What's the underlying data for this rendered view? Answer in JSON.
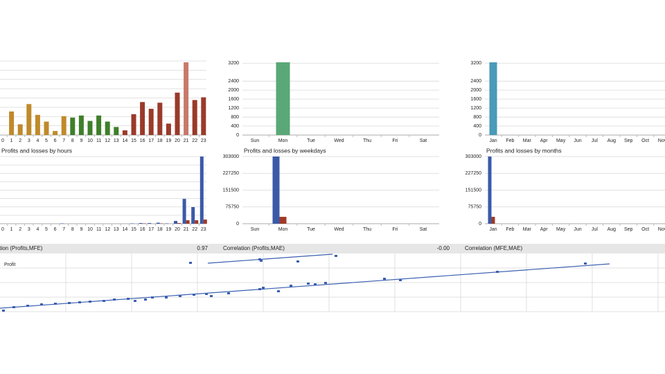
{
  "chart_data": [
    {
      "type": "bar",
      "categories": [
        "0",
        "1",
        "2",
        "3",
        "4",
        "5",
        "6",
        "7",
        "8",
        "9",
        "10",
        "11",
        "12",
        "13",
        "14",
        "15",
        "16",
        "17",
        "18",
        "19",
        "20",
        "21",
        "22",
        "23"
      ],
      "values": [
        0,
        1050,
        480,
        1380,
        900,
        600,
        180,
        840,
        780,
        870,
        630,
        870,
        600,
        360,
        210,
        930,
        1470,
        1170,
        1440,
        510,
        1890,
        3240,
        1560,
        1680
      ],
      "colors": [
        "#c08a2a",
        "#c08a2a",
        "#c08a2a",
        "#c08a2a",
        "#c08a2a",
        "#c08a2a",
        "#c08a2a",
        "#c08a2a",
        "#3f7f2a",
        "#3f7f2a",
        "#3f7f2a",
        "#3f7f2a",
        "#3f7f2a",
        "#3f7f2a",
        "#9a3a2a",
        "#9a3a2a",
        "#9a3a2a",
        "#9a3a2a",
        "#9a3a2a",
        "#9a3a2a",
        "#9a3a2a",
        "#c8786a",
        "#9a3a2a",
        "#9a3a2a"
      ],
      "ylim": [
        0,
        3300
      ],
      "grid": true
    },
    {
      "type": "bar",
      "categories": [
        "Sun",
        "Mon",
        "Tue",
        "Wed",
        "Thu",
        "Fri",
        "Sat"
      ],
      "values": [
        0,
        3240,
        0,
        0,
        0,
        0,
        0
      ],
      "color": "#5aa878",
      "ylim": [
        0,
        3300
      ],
      "yticks": [
        0,
        400,
        800,
        1200,
        1600,
        2000,
        2400,
        3200
      ],
      "grid": true
    },
    {
      "type": "bar",
      "categories": [
        "Jan",
        "Feb",
        "Mar",
        "Apr",
        "May",
        "Jun",
        "Jul",
        "Aug",
        "Sep",
        "Oct",
        "Nov"
      ],
      "values": [
        3240,
        0,
        0,
        0,
        0,
        0,
        0,
        0,
        0,
        0,
        0
      ],
      "color": "#4a9ab8",
      "ylim": [
        0,
        3300
      ],
      "yticks": [
        0,
        400,
        800,
        1200,
        1600,
        2000,
        2400,
        3200
      ],
      "grid": true
    },
    {
      "type": "grouped-bar",
      "title": "Profits and losses by hours",
      "categories": [
        "0",
        "1",
        "2",
        "3",
        "4",
        "5",
        "6",
        "7",
        "8",
        "9",
        "10",
        "11",
        "12",
        "13",
        "14",
        "15",
        "16",
        "17",
        "18",
        "19",
        "20",
        "21",
        "22",
        "23"
      ],
      "series": [
        {
          "color": "#3a5aa8",
          "values": [
            0,
            0,
            0,
            0,
            0,
            0,
            0,
            1500,
            0,
            0,
            0,
            0,
            0,
            0,
            0,
            1500,
            3000,
            3000,
            4500,
            1500,
            12500,
            112000,
            75000,
            303000
          ]
        },
        {
          "color": "#a03a28",
          "values": [
            0,
            0,
            0,
            0,
            0,
            0,
            0,
            0,
            0,
            0,
            0,
            0,
            0,
            0,
            0,
            0,
            1500,
            0,
            1500,
            0,
            3000,
            15600,
            15600,
            18700
          ]
        }
      ],
      "ylim": [
        0,
        303000
      ],
      "grid": true
    },
    {
      "type": "grouped-bar",
      "title": "Profits and losses by weekdays",
      "categories": [
        "Sun",
        "Mon",
        "Tue",
        "Wed",
        "Thu",
        "Fri",
        "Sat"
      ],
      "series": [
        {
          "color": "#3a5aa8",
          "values": [
            0,
            303000,
            0,
            0,
            0,
            0,
            0
          ]
        },
        {
          "color": "#a03a28",
          "values": [
            0,
            31000,
            0,
            0,
            0,
            0,
            0
          ]
        }
      ],
      "ylim": [
        0,
        303000
      ],
      "yticks": [
        0,
        75750,
        151500,
        227250,
        303000
      ],
      "grid": true
    },
    {
      "type": "grouped-bar",
      "title": "Profits and losses by months",
      "categories": [
        "Jan",
        "Feb",
        "Mar",
        "Apr",
        "May",
        "Jun",
        "Jul",
        "Aug",
        "Sep",
        "Oct",
        "Nov"
      ],
      "series": [
        {
          "color": "#3a5aa8",
          "values": [
            303000,
            0,
            0,
            0,
            0,
            0,
            0,
            0,
            0,
            0,
            0
          ]
        },
        {
          "color": "#a03a28",
          "values": [
            31000,
            0,
            0,
            0,
            0,
            0,
            0,
            0,
            0,
            0,
            0
          ]
        }
      ],
      "ylim": [
        0,
        303000
      ],
      "yticks": [
        0,
        75750,
        151500,
        227250,
        303000
      ],
      "grid": true
    },
    {
      "type": "scatter",
      "y_label": "Profit",
      "x": [
        5,
        20,
        40,
        60,
        80,
        100,
        115,
        130,
        150,
        165,
        185,
        195,
        210,
        220,
        240,
        260,
        280,
        298,
        305,
        330,
        375,
        380,
        402,
        420,
        445,
        455,
        470,
        555,
        578,
        718,
        845,
        275,
        375,
        377,
        430,
        485
      ],
      "series": [
        {
          "color": "#3a5fb0",
          "values": [
            1,
            6,
            8,
            10,
            11,
            12,
            13,
            14,
            15,
            17,
            18,
            15,
            17,
            20,
            20,
            22,
            24,
            25,
            22,
            26,
            32,
            34,
            29,
            37,
            40,
            39,
            41,
            47,
            45,
            57,
            69,
            70,
            75,
            73,
            72,
            80
          ]
        }
      ],
      "lines": [
        {
          "x": [
            0,
            880
          ],
          "values": [
            5,
            69
          ]
        },
        {
          "x": [
            300,
            480
          ],
          "values": [
            70,
            83
          ]
        }
      ],
      "xlim": [
        0,
        960
      ],
      "ylim": [
        0,
        84
      ],
      "grid": true
    }
  ],
  "correlations": [
    {
      "label": "Correlation (Profits,MFE)",
      "value": "0.97"
    },
    {
      "label": "Correlation (Profits,MAE)",
      "value": "-0.00"
    },
    {
      "label": "Correlation (MFE,MAE)"
    }
  ]
}
